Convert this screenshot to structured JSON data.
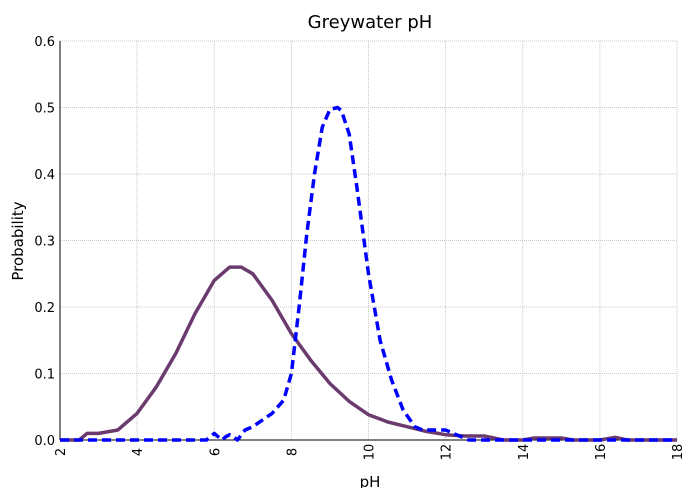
{
  "chart_data": {
    "type": "line",
    "title": "Greywater pH",
    "xlabel": "pH",
    "ylabel": "Probability",
    "xlim": [
      2,
      18
    ],
    "ylim": [
      0,
      0.6
    ],
    "xticks": [
      "2",
      "4",
      "6",
      "8",
      "10",
      "12",
      "14",
      "16",
      "18"
    ],
    "yticks": [
      "0.0",
      "0.1",
      "0.2",
      "0.3",
      "0.4",
      "0.5",
      "0.6"
    ],
    "grid": true,
    "series": [
      {
        "style": "solid",
        "color": "#6B3A6E",
        "x": [
          2.0,
          2.5,
          2.7,
          3.0,
          3.5,
          4.0,
          4.5,
          5.0,
          5.5,
          6.0,
          6.4,
          6.7,
          7.0,
          7.5,
          8.0,
          8.5,
          9.0,
          9.5,
          10.0,
          10.5,
          11.0,
          11.5,
          12.0,
          12.5,
          13.0,
          13.5,
          14.0,
          14.3,
          14.6,
          15.0,
          15.3,
          15.6,
          16.0,
          16.4,
          16.7,
          17.0,
          18.0
        ],
        "y": [
          0.0,
          0.0,
          0.01,
          0.01,
          0.015,
          0.04,
          0.08,
          0.13,
          0.19,
          0.24,
          0.26,
          0.26,
          0.25,
          0.21,
          0.16,
          0.12,
          0.085,
          0.058,
          0.038,
          0.027,
          0.02,
          0.013,
          0.008,
          0.006,
          0.006,
          0.0,
          0.0,
          0.003,
          0.003,
          0.003,
          0.0,
          0.0,
          0.0,
          0.004,
          0.0,
          0.0,
          0.0
        ]
      },
      {
        "style": "dashed",
        "color": "#0000FF",
        "x": [
          2.0,
          5.8,
          6.0,
          6.1,
          6.2,
          6.3,
          6.4,
          6.5,
          6.6,
          6.8,
          7.0,
          7.5,
          7.8,
          8.0,
          8.2,
          8.4,
          8.6,
          8.8,
          9.0,
          9.2,
          9.3,
          9.5,
          9.7,
          10.0,
          10.3,
          10.6,
          10.9,
          11.2,
          11.4,
          11.6,
          11.8,
          12.0,
          12.2,
          12.4,
          12.6,
          18.0
        ],
        "y": [
          0.0,
          0.0,
          0.01,
          0.005,
          0.0,
          0.005,
          0.008,
          0.005,
          0.0,
          0.015,
          0.02,
          0.04,
          0.06,
          0.1,
          0.2,
          0.31,
          0.4,
          0.47,
          0.497,
          0.5,
          0.495,
          0.46,
          0.38,
          0.25,
          0.15,
          0.09,
          0.045,
          0.02,
          0.015,
          0.015,
          0.015,
          0.015,
          0.01,
          0.005,
          0.0,
          0.0
        ]
      }
    ]
  }
}
